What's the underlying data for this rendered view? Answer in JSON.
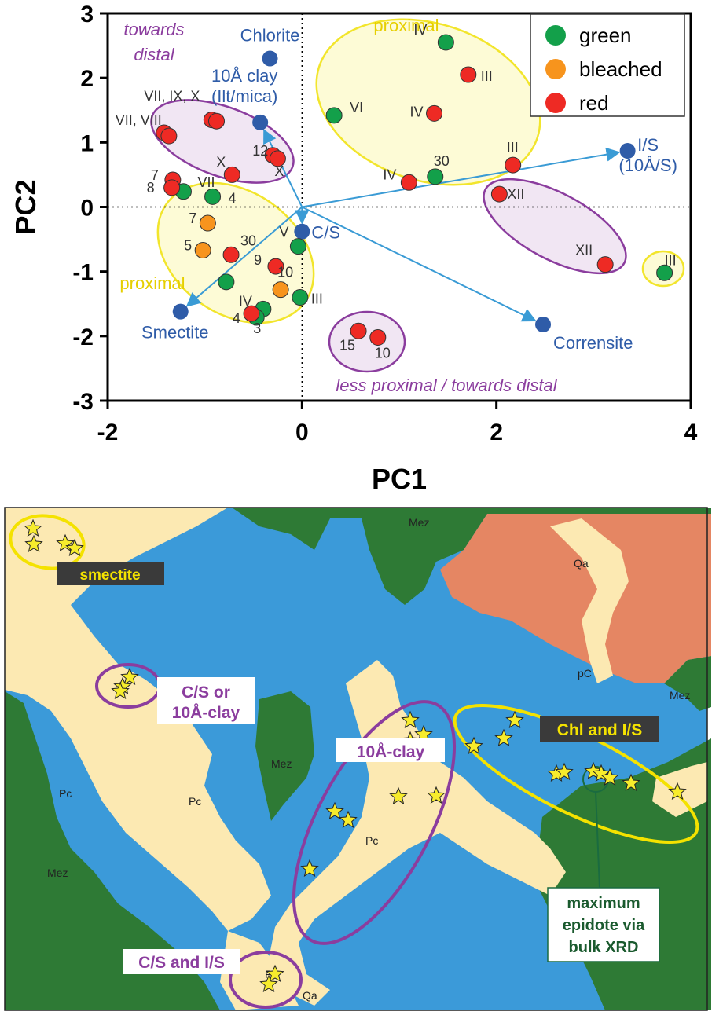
{
  "chart_data": [
    {
      "type": "scatter",
      "title": "",
      "xlabel": "PC1",
      "ylabel": "PC2",
      "xlim": [
        -2.0,
        4.0
      ],
      "ylim": [
        -3.0,
        3.0
      ],
      "xticks": [
        "-2",
        "0",
        "2",
        "4"
      ],
      "yticks": [
        "3",
        "2",
        "1",
        "0",
        "-1",
        "-2",
        "-3"
      ],
      "zero_lines": "dotted",
      "legend_placement": "top-right",
      "series": [
        {
          "name": "green",
          "color": "#13a04a",
          "points": [
            {
              "x": 1.48,
              "y": 2.55,
              "label": "IV"
            },
            {
              "x": 0.33,
              "y": 1.42,
              "label": "VI"
            },
            {
              "x": 1.37,
              "y": 0.47,
              "label": "30"
            },
            {
              "x": -1.22,
              "y": 0.24,
              "label": "VII"
            },
            {
              "x": -0.92,
              "y": 0.16,
              "label": "4"
            },
            {
              "x": -0.04,
              "y": -0.61,
              "label": "V"
            },
            {
              "x": -0.78,
              "y": -1.16,
              "label": ""
            },
            {
              "x": -0.02,
              "y": -1.4,
              "label": "III"
            },
            {
              "x": -0.4,
              "y": -1.58,
              "label": "IV"
            },
            {
              "x": -0.47,
              "y": -1.71,
              "label": "3"
            },
            {
              "x": 3.73,
              "y": -1.02,
              "label": "III"
            }
          ]
        },
        {
          "name": "bleached",
          "color": "#f7941d",
          "points": [
            {
              "x": -0.97,
              "y": -0.25,
              "label": "7"
            },
            {
              "x": -1.02,
              "y": -0.67,
              "label": "5"
            },
            {
              "x": -0.22,
              "y": -1.28,
              "label": "10"
            }
          ]
        },
        {
          "name": "red",
          "color": "#ee2a24",
          "points": [
            {
              "x": 1.71,
              "y": 2.05,
              "label": "III"
            },
            {
              "x": 1.36,
              "y": 1.45,
              "label": "IV"
            },
            {
              "x": 2.17,
              "y": 0.65,
              "label": "III"
            },
            {
              "x": 1.1,
              "y": 0.38,
              "label": "IV"
            },
            {
              "x": 2.03,
              "y": 0.2,
              "label": "XII"
            },
            {
              "x": 3.12,
              "y": -0.89,
              "label": "XII"
            },
            {
              "x": -0.93,
              "y": 1.35,
              "label": "VII, IX, X"
            },
            {
              "x": -0.88,
              "y": 1.33,
              "label": ""
            },
            {
              "x": -1.42,
              "y": 1.15,
              "label": "VII, VIII"
            },
            {
              "x": -1.37,
              "y": 1.1,
              "label": ""
            },
            {
              "x": -0.3,
              "y": 0.8,
              "label": "12"
            },
            {
              "x": -0.25,
              "y": 0.75,
              "label": "X"
            },
            {
              "x": -0.72,
              "y": 0.5,
              "label": "X"
            },
            {
              "x": -1.33,
              "y": 0.42,
              "label": "7"
            },
            {
              "x": -1.34,
              "y": 0.3,
              "label": "8"
            },
            {
              "x": -0.73,
              "y": -0.74,
              "label": "30"
            },
            {
              "x": -0.27,
              "y": -0.92,
              "label": "9"
            },
            {
              "x": -0.52,
              "y": -1.65,
              "label": "4"
            },
            {
              "x": 0.58,
              "y": -1.92,
              "label": "15"
            },
            {
              "x": 0.78,
              "y": -2.02,
              "label": "10"
            }
          ]
        }
      ],
      "loadings": [
        {
          "name": "Chlorite",
          "x": -0.33,
          "y": 2.3,
          "arrow": false
        },
        {
          "name": "10Å clay (Ilt/mica)",
          "line1": "10Å clay",
          "line2": "(Ilt/mica)",
          "x": -0.43,
          "y": 1.31,
          "arrow": true
        },
        {
          "name": "I/S (10Å/S)",
          "line1": "I/S",
          "line2": "(10Å/S)",
          "x": 3.35,
          "y": 0.87,
          "arrow": true
        },
        {
          "name": "C/S",
          "x": 0.0,
          "y": -0.38,
          "arrow": true
        },
        {
          "name": "Smectite",
          "x": -1.25,
          "y": -1.62,
          "arrow": true
        },
        {
          "name": "Corrensite",
          "x": 2.48,
          "y": -1.82,
          "arrow": true
        }
      ],
      "annotations": [
        "towards",
        "distal",
        "proximal",
        "proximal",
        "less proximal / towards distal"
      ]
    }
  ],
  "map": {
    "labels": [
      "Mez",
      "Qa",
      "pC",
      "Mez",
      "Qa",
      "Pc",
      "Mez",
      "Pc",
      "Pc",
      "Mez",
      "Mez",
      "Pc",
      "Qa"
    ],
    "callouts": {
      "smectite": "smectite",
      "cs_or_10a_line1": "C/S or",
      "cs_or_10a_line2": "10Å-clay",
      "ten_a_clay": "10Å-clay",
      "chl_is": "Chl and I/S",
      "cs_is": "C/S and I/S",
      "epidote_line1": "maximum",
      "epidote_line2": "epidote via",
      "epidote_line3": "bulk XRD"
    },
    "colors": {
      "blue": "#3b9ad9",
      "sand": "#fce9b2",
      "green": "#2e7a35",
      "salmon": "#e58663",
      "yellow": "#f4e200",
      "purple": "#8b3d9e"
    }
  }
}
